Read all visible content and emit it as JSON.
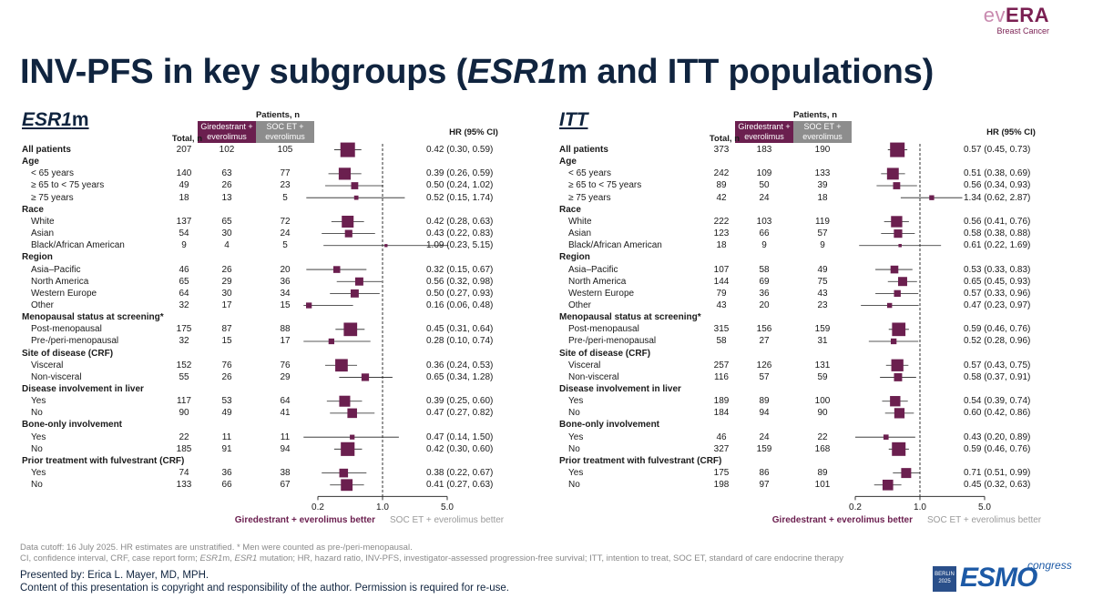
{
  "header": {
    "logo_prefix": "ev",
    "logo_main": "ERA",
    "logo_sub": "Breast Cancer",
    "title_a": "INV-PFS in key subgroups (",
    "title_b": "ESR1",
    "title_c": "m and ITT populations)"
  },
  "colors": {
    "gire": "#6b1f4f",
    "soc": "#8d8d8d",
    "title": "#10243f"
  },
  "panels_header": {
    "patients": "Patients, n",
    "total": "Total, n",
    "gire_chip": "Giredestrant + everolimus",
    "soc_chip": "SOC ET + everolimus",
    "hr": "HR (95% CI)",
    "gire_better": "Giredestrant + everolimus better",
    "soc_better": "SOC ET + everolimus better"
  },
  "chart_data": [
    {
      "type": "forest",
      "title_main": "ESR1",
      "title_suffix": "m",
      "x_scale": "log",
      "xlim": [
        0.2,
        5.0
      ],
      "ticks": [
        "0.2",
        "1.0",
        "5.0"
      ],
      "reference_line": 1.0,
      "rows": [
        {
          "label": "All patients",
          "kind": "all",
          "total": "207",
          "gire": "102",
          "soc": "105",
          "hr": 0.42,
          "lo": 0.3,
          "hi": 0.59,
          "hr_text": "0.42 (0.30, 0.59)"
        },
        {
          "label": "Age",
          "kind": "head"
        },
        {
          "label": "< 65 years",
          "kind": "sub",
          "total": "140",
          "gire": "63",
          "soc": "77",
          "hr": 0.39,
          "lo": 0.26,
          "hi": 0.59,
          "hr_text": "0.39 (0.26, 0.59)"
        },
        {
          "label": "≥ 65 to < 75 years",
          "kind": "sub",
          "total": "49",
          "gire": "26",
          "soc": "23",
          "hr": 0.5,
          "lo": 0.24,
          "hi": 1.02,
          "hr_text": "0.50 (0.24, 1.02)"
        },
        {
          "label": "≥ 75 years",
          "kind": "sub",
          "total": "18",
          "gire": "13",
          "soc": "5",
          "hr": 0.52,
          "lo": 0.15,
          "hi": 1.74,
          "hr_text": "0.52 (0.15, 1.74)"
        },
        {
          "label": "Race",
          "kind": "head"
        },
        {
          "label": "White",
          "kind": "sub",
          "total": "137",
          "gire": "65",
          "soc": "72",
          "hr": 0.42,
          "lo": 0.28,
          "hi": 0.63,
          "hr_text": "0.42 (0.28, 0.63)"
        },
        {
          "label": "Asian",
          "kind": "sub",
          "total": "54",
          "gire": "30",
          "soc": "24",
          "hr": 0.43,
          "lo": 0.22,
          "hi": 0.83,
          "hr_text": "0.43 (0.22, 0.83)"
        },
        {
          "label": "Black/African American",
          "kind": "sub",
          "total": "9",
          "gire": "4",
          "soc": "5",
          "hr": 1.09,
          "lo": 0.23,
          "hi": 5.15,
          "hr_text": "1.09 (0.23, 5.15)"
        },
        {
          "label": "Region",
          "kind": "head"
        },
        {
          "label": "Asia–Pacific",
          "kind": "sub",
          "total": "46",
          "gire": "26",
          "soc": "20",
          "hr": 0.32,
          "lo": 0.15,
          "hi": 0.67,
          "hr_text": "0.32 (0.15, 0.67)"
        },
        {
          "label": "North America",
          "kind": "sub",
          "total": "65",
          "gire": "29",
          "soc": "36",
          "hr": 0.56,
          "lo": 0.32,
          "hi": 0.98,
          "hr_text": "0.56 (0.32, 0.98)"
        },
        {
          "label": "Western Europe",
          "kind": "sub",
          "total": "64",
          "gire": "30",
          "soc": "34",
          "hr": 0.5,
          "lo": 0.27,
          "hi": 0.93,
          "hr_text": "0.50 (0.27, 0.93)"
        },
        {
          "label": "Other",
          "kind": "sub",
          "total": "32",
          "gire": "17",
          "soc": "15",
          "hr": 0.16,
          "lo": 0.06,
          "hi": 0.48,
          "hr_text": "0.16 (0.06, 0.48)"
        },
        {
          "label": "Menopausal status at screening*",
          "kind": "head"
        },
        {
          "label": "Post-menopausal",
          "kind": "sub",
          "total": "175",
          "gire": "87",
          "soc": "88",
          "hr": 0.45,
          "lo": 0.31,
          "hi": 0.64,
          "hr_text": "0.45 (0.31, 0.64)"
        },
        {
          "label": "Pre-/peri-menopausal",
          "kind": "sub",
          "total": "32",
          "gire": "15",
          "soc": "17",
          "hr": 0.28,
          "lo": 0.1,
          "hi": 0.74,
          "hr_text": "0.28 (0.10, 0.74)"
        },
        {
          "label": "Site of disease (CRF)",
          "kind": "head"
        },
        {
          "label": "Visceral",
          "kind": "sub",
          "total": "152",
          "gire": "76",
          "soc": "76",
          "hr": 0.36,
          "lo": 0.24,
          "hi": 0.53,
          "hr_text": "0.36 (0.24, 0.53)"
        },
        {
          "label": "Non-visceral",
          "kind": "sub",
          "total": "55",
          "gire": "26",
          "soc": "29",
          "hr": 0.65,
          "lo": 0.34,
          "hi": 1.28,
          "hr_text": "0.65 (0.34, 1.28)"
        },
        {
          "label": "Disease involvement in liver",
          "kind": "head"
        },
        {
          "label": "Yes",
          "kind": "sub",
          "total": "117",
          "gire": "53",
          "soc": "64",
          "hr": 0.39,
          "lo": 0.25,
          "hi": 0.6,
          "hr_text": "0.39 (0.25, 0.60)"
        },
        {
          "label": "No",
          "kind": "sub",
          "total": "90",
          "gire": "49",
          "soc": "41",
          "hr": 0.47,
          "lo": 0.27,
          "hi": 0.82,
          "hr_text": "0.47 (0.27, 0.82)"
        },
        {
          "label": "Bone-only involvement",
          "kind": "head"
        },
        {
          "label": "Yes",
          "kind": "sub",
          "total": "22",
          "gire": "11",
          "soc": "11",
          "hr": 0.47,
          "lo": 0.14,
          "hi": 1.5,
          "hr_text": "0.47 (0.14, 1.50)"
        },
        {
          "label": "No",
          "kind": "sub",
          "total": "185",
          "gire": "91",
          "soc": "94",
          "hr": 0.42,
          "lo": 0.3,
          "hi": 0.6,
          "hr_text": "0.42 (0.30, 0.60)"
        },
        {
          "label": "Prior treatment with fulvestrant (CRF)",
          "kind": "head"
        },
        {
          "label": "Yes",
          "kind": "sub",
          "total": "74",
          "gire": "36",
          "soc": "38",
          "hr": 0.38,
          "lo": 0.22,
          "hi": 0.67,
          "hr_text": "0.38 (0.22, 0.67)"
        },
        {
          "label": "No",
          "kind": "sub",
          "total": "133",
          "gire": "66",
          "soc": "67",
          "hr": 0.41,
          "lo": 0.27,
          "hi": 0.63,
          "hr_text": "0.41 (0.27, 0.63)"
        }
      ]
    },
    {
      "type": "forest",
      "title_main": "ITT",
      "title_suffix": "",
      "x_scale": "log",
      "xlim": [
        0.2,
        5.0
      ],
      "ticks": [
        "0.2",
        "1.0",
        "5.0"
      ],
      "reference_line": 1.0,
      "rows": [
        {
          "label": "All patients",
          "kind": "all",
          "total": "373",
          "gire": "183",
          "soc": "190",
          "hr": 0.57,
          "lo": 0.45,
          "hi": 0.73,
          "hr_text": "0.57 (0.45, 0.73)"
        },
        {
          "label": "Age",
          "kind": "head"
        },
        {
          "label": "< 65 years",
          "kind": "sub",
          "total": "242",
          "gire": "109",
          "soc": "133",
          "hr": 0.51,
          "lo": 0.38,
          "hi": 0.69,
          "hr_text": "0.51 (0.38, 0.69)"
        },
        {
          "label": "≥ 65 to < 75 years",
          "kind": "sub",
          "total": "89",
          "gire": "50",
          "soc": "39",
          "hr": 0.56,
          "lo": 0.34,
          "hi": 0.93,
          "hr_text": "0.56 (0.34, 0.93)"
        },
        {
          "label": "≥ 75 years",
          "kind": "sub",
          "total": "42",
          "gire": "24",
          "soc": "18",
          "hr": 1.34,
          "lo": 0.62,
          "hi": 2.87,
          "hr_text": "1.34 (0.62, 2.87)"
        },
        {
          "label": "Race",
          "kind": "head"
        },
        {
          "label": "White",
          "kind": "sub",
          "total": "222",
          "gire": "103",
          "soc": "119",
          "hr": 0.56,
          "lo": 0.41,
          "hi": 0.76,
          "hr_text": "0.56 (0.41, 0.76)"
        },
        {
          "label": "Asian",
          "kind": "sub",
          "total": "123",
          "gire": "66",
          "soc": "57",
          "hr": 0.58,
          "lo": 0.38,
          "hi": 0.88,
          "hr_text": "0.58 (0.38, 0.88)"
        },
        {
          "label": "Black/African American",
          "kind": "sub",
          "total": "18",
          "gire": "9",
          "soc": "9",
          "hr": 0.61,
          "lo": 0.22,
          "hi": 1.69,
          "hr_text": "0.61 (0.22, 1.69)"
        },
        {
          "label": "Region",
          "kind": "head"
        },
        {
          "label": "Asia–Pacific",
          "kind": "sub",
          "total": "107",
          "gire": "58",
          "soc": "49",
          "hr": 0.53,
          "lo": 0.33,
          "hi": 0.83,
          "hr_text": "0.53 (0.33, 0.83)"
        },
        {
          "label": "North America",
          "kind": "sub",
          "total": "144",
          "gire": "69",
          "soc": "75",
          "hr": 0.65,
          "lo": 0.45,
          "hi": 0.93,
          "hr_text": "0.65 (0.45, 0.93)"
        },
        {
          "label": "Western Europe",
          "kind": "sub",
          "total": "79",
          "gire": "36",
          "soc": "43",
          "hr": 0.57,
          "lo": 0.33,
          "hi": 0.96,
          "hr_text": "0.57 (0.33, 0.96)"
        },
        {
          "label": "Other",
          "kind": "sub",
          "total": "43",
          "gire": "20",
          "soc": "23",
          "hr": 0.47,
          "lo": 0.23,
          "hi": 0.97,
          "hr_text": "0.47 (0.23, 0.97)"
        },
        {
          "label": "Menopausal status at screening*",
          "kind": "head"
        },
        {
          "label": "Post-menopausal",
          "kind": "sub",
          "total": "315",
          "gire": "156",
          "soc": "159",
          "hr": 0.59,
          "lo": 0.46,
          "hi": 0.76,
          "hr_text": "0.59 (0.46, 0.76)"
        },
        {
          "label": "Pre-/peri-menopausal",
          "kind": "sub",
          "total": "58",
          "gire": "27",
          "soc": "31",
          "hr": 0.52,
          "lo": 0.28,
          "hi": 0.96,
          "hr_text": "0.52 (0.28, 0.96)"
        },
        {
          "label": "Site of disease (CRF)",
          "kind": "head"
        },
        {
          "label": "Visceral",
          "kind": "sub",
          "total": "257",
          "gire": "126",
          "soc": "131",
          "hr": 0.57,
          "lo": 0.43,
          "hi": 0.75,
          "hr_text": "0.57 (0.43, 0.75)"
        },
        {
          "label": "Non-visceral",
          "kind": "sub",
          "total": "116",
          "gire": "57",
          "soc": "59",
          "hr": 0.58,
          "lo": 0.37,
          "hi": 0.91,
          "hr_text": "0.58 (0.37, 0.91)"
        },
        {
          "label": "Disease involvement in liver",
          "kind": "head"
        },
        {
          "label": "Yes",
          "kind": "sub",
          "total": "189",
          "gire": "89",
          "soc": "100",
          "hr": 0.54,
          "lo": 0.39,
          "hi": 0.74,
          "hr_text": "0.54 (0.39, 0.74)"
        },
        {
          "label": "No",
          "kind": "sub",
          "total": "184",
          "gire": "94",
          "soc": "90",
          "hr": 0.6,
          "lo": 0.42,
          "hi": 0.86,
          "hr_text": "0.60 (0.42, 0.86)"
        },
        {
          "label": "Bone-only involvement",
          "kind": "head"
        },
        {
          "label": "Yes",
          "kind": "sub",
          "total": "46",
          "gire": "24",
          "soc": "22",
          "hr": 0.43,
          "lo": 0.2,
          "hi": 0.89,
          "hr_text": "0.43 (0.20, 0.89)"
        },
        {
          "label": "No",
          "kind": "sub",
          "total": "327",
          "gire": "159",
          "soc": "168",
          "hr": 0.59,
          "lo": 0.46,
          "hi": 0.76,
          "hr_text": "0.59 (0.46, 0.76)"
        },
        {
          "label": "Prior treatment with fulvestrant (CRF)",
          "kind": "head"
        },
        {
          "label": "Yes",
          "kind": "sub",
          "total": "175",
          "gire": "86",
          "soc": "89",
          "hr": 0.71,
          "lo": 0.51,
          "hi": 0.99,
          "hr_text": "0.71 (0.51, 0.99)"
        },
        {
          "label": "No",
          "kind": "sub",
          "total": "198",
          "gire": "97",
          "soc": "101",
          "hr": 0.45,
          "lo": 0.32,
          "hi": 0.63,
          "hr_text": "0.45 (0.32, 0.63)"
        }
      ]
    }
  ],
  "footer": {
    "note1": "Data cutoff: 16 July 2025. HR estimates are unstratified. * Men were counted as pre-/peri-menopausal.",
    "note2_a": "CI, confidence interval, CRF, case report form; ",
    "note2_b": "ESR1",
    "note2_c": "m, ",
    "note2_d": "ESR1",
    "note2_e": " mutation; HR, hazard ratio, INV-PFS, investigator-assessed progression-free survival; ITT, intention to treat, SOC ET, standard of care endocrine therapy",
    "presenter": "Presented by: Erica L. Mayer, MD, MPH.",
    "copyright": "Content of this presentation is copyright and responsibility of the author. Permission is required for re-use.",
    "esmo_city": "BERLIN",
    "esmo_year": "2025",
    "esmo_word": "ESMO",
    "esmo_congress": "congress"
  }
}
